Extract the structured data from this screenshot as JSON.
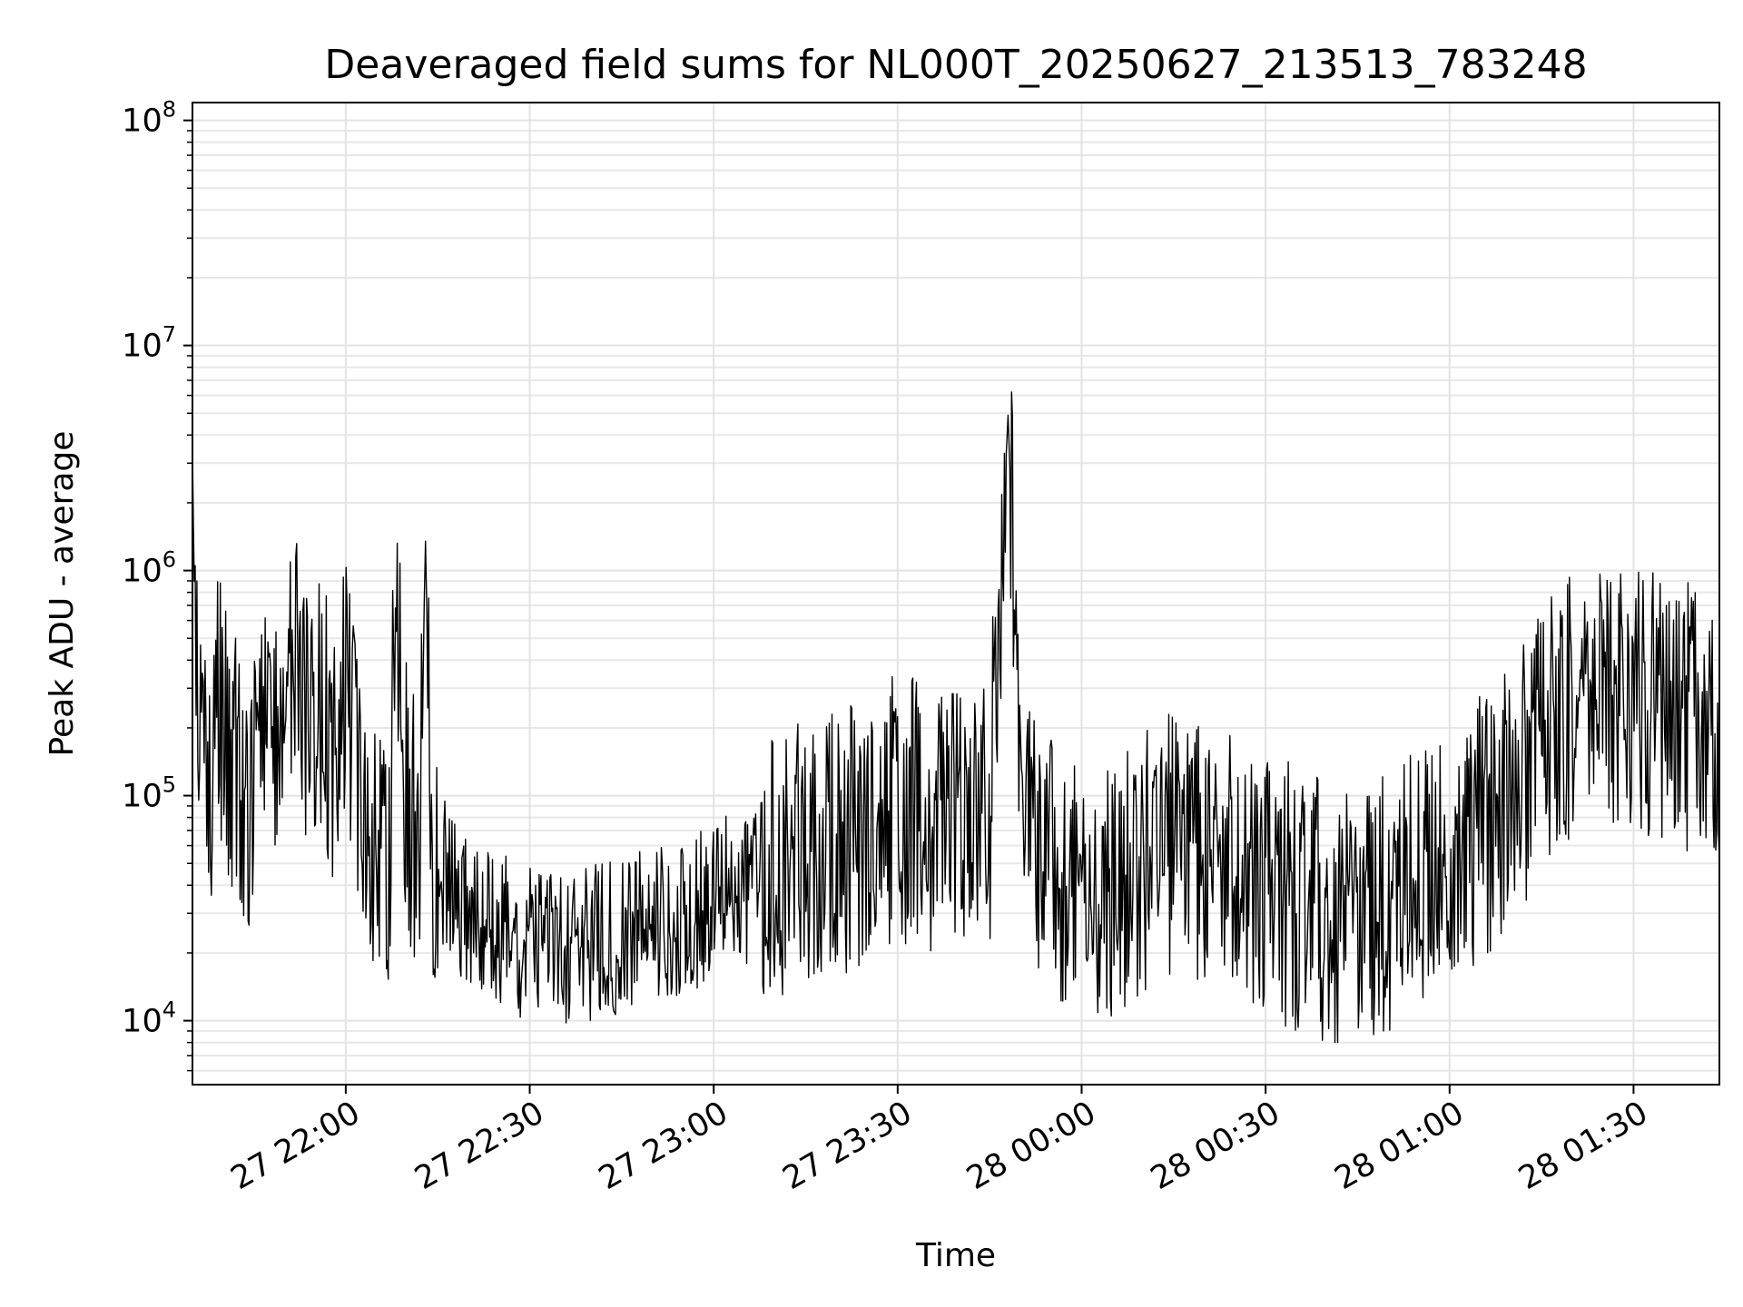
{
  "chart_data": {
    "type": "line",
    "title": "Deaveraged field sums for NL000T_20250627_213513_783248",
    "xlabel": "Time",
    "ylabel": "Peak ADU - average",
    "yscale": "log",
    "ylim": [
      5200,
      120000000
    ],
    "xlim": [
      "2025-06-27 21:35",
      "2025-06-28 01:44"
    ],
    "grid": true,
    "line_color": "#000000",
    "x_ticks": [
      {
        "time": "2025-06-27 22:00",
        "label": "27 22:00"
      },
      {
        "time": "2025-06-27 22:30",
        "label": "27 22:30"
      },
      {
        "time": "2025-06-27 23:00",
        "label": "27 23:00"
      },
      {
        "time": "2025-06-27 23:30",
        "label": "27 23:30"
      },
      {
        "time": "2025-06-28 00:00",
        "label": "28 00:00"
      },
      {
        "time": "2025-06-28 00:30",
        "label": "28 00:30"
      },
      {
        "time": "2025-06-28 01:00",
        "label": "28 01:00"
      },
      {
        "time": "2025-06-28 01:30",
        "label": "28 01:30"
      }
    ],
    "y_ticks": [
      {
        "value": 10000,
        "base": "10",
        "exp": "4"
      },
      {
        "value": 100000,
        "base": "10",
        "exp": "5"
      },
      {
        "value": 1000000,
        "base": "10",
        "exp": "6"
      },
      {
        "value": 10000000,
        "base": "10",
        "exp": "7"
      },
      {
        "value": 100000000,
        "base": "10",
        "exp": "8"
      }
    ],
    "series": [
      {
        "x": [
          "2025-06-27 21:35",
          "2025-06-27 21:36",
          "2025-06-27 21:37",
          "2025-06-27 21:38",
          "2025-06-27 21:39",
          "2025-06-27 21:40",
          "2025-06-27 21:42",
          "2025-06-27 21:44",
          "2025-06-27 21:46",
          "2025-06-27 21:48",
          "2025-06-27 21:50",
          "2025-06-27 21:52",
          "2025-06-27 21:54",
          "2025-06-27 21:56",
          "2025-06-27 21:58",
          "2025-06-27 22:00",
          "2025-06-27 22:02",
          "2025-06-27 22:04",
          "2025-06-27 22:06",
          "2025-06-27 22:07",
          "2025-06-27 22:08",
          "2025-06-27 22:10",
          "2025-06-27 22:12",
          "2025-06-27 22:13",
          "2025-06-27 22:14",
          "2025-06-27 22:16",
          "2025-06-27 22:18",
          "2025-06-27 22:20",
          "2025-06-27 22:25",
          "2025-06-27 22:30",
          "2025-06-27 22:35",
          "2025-06-27 22:40",
          "2025-06-27 22:45",
          "2025-06-27 22:50",
          "2025-06-27 22:55",
          "2025-06-27 23:00",
          "2025-06-27 23:05",
          "2025-06-27 23:10",
          "2025-06-27 23:15",
          "2025-06-27 23:20",
          "2025-06-27 23:25",
          "2025-06-27 23:30",
          "2025-06-27 23:35",
          "2025-06-27 23:40",
          "2025-06-27 23:45",
          "2025-06-27 23:48",
          "2025-06-27 23:50",
          "2025-06-27 23:52",
          "2025-06-27 23:55",
          "2025-06-28 00:00",
          "2025-06-28 00:05",
          "2025-06-28 00:10",
          "2025-06-28 00:15",
          "2025-06-28 00:20",
          "2025-06-28 00:25",
          "2025-06-28 00:30",
          "2025-06-28 00:35",
          "2025-06-28 00:40",
          "2025-06-28 00:45",
          "2025-06-28 00:50",
          "2025-06-28 00:55",
          "2025-06-28 01:00",
          "2025-06-28 01:05",
          "2025-06-28 01:10",
          "2025-06-28 01:15",
          "2025-06-28 01:20",
          "2025-06-28 01:25",
          "2025-06-28 01:30",
          "2025-06-28 01:35",
          "2025-06-28 01:40",
          "2025-06-28 01:44"
        ],
        "y": [
          3500000,
          90000,
          400000,
          60000,
          300000,
          180000,
          130000,
          90000,
          250000,
          150000,
          300000,
          400000,
          200000,
          280000,
          150000,
          350000,
          120000,
          70000,
          60000,
          45000,
          750000,
          90000,
          65000,
          1350000,
          60000,
          45000,
          35000,
          30000,
          25000,
          22000,
          20000,
          22000,
          24000,
          26000,
          28000,
          35000,
          38000,
          45000,
          55000,
          60000,
          70000,
          90000,
          80000,
          75000,
          80000,
          4900000,
          120000,
          70000,
          50000,
          40000,
          35000,
          50000,
          60000,
          55000,
          45000,
          40000,
          35000,
          30000,
          28000,
          35000,
          45000,
          55000,
          70000,
          95000,
          180000,
          250000,
          280000,
          260000,
          240000,
          220000,
          200000
        ]
      }
    ],
    "annotations": [
      {
        "time": "2025-06-27 22:13",
        "value": 1350000
      },
      {
        "time": "2025-06-27 23:48",
        "value": 4900000
      }
    ]
  }
}
